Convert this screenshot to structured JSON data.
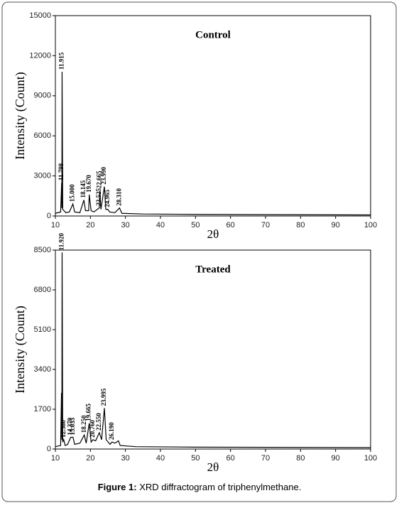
{
  "chart_data": [
    {
      "type": "line",
      "title": "Control",
      "x_label": "2θ",
      "y_label": "Intensity (Count)",
      "xlim": [
        10,
        100
      ],
      "xticks": [
        10,
        20,
        30,
        40,
        50,
        60,
        70,
        80,
        90,
        100
      ],
      "ylim": [
        0,
        15000
      ],
      "yticks": [
        0,
        3000,
        6000,
        9000,
        12000,
        15000
      ],
      "series": [
        {
          "name": "Control",
          "color": "#000000",
          "x": [
            10,
            11.5,
            11.798,
            11.85,
            11.915,
            12.1,
            13,
            14,
            15,
            15.5,
            17,
            18.145,
            18.6,
            19.5,
            19.67,
            20.2,
            21,
            22.525,
            22.665,
            23,
            23.99,
            24.4,
            24.965,
            25.5,
            27,
            28.31,
            29,
            35,
            50,
            70,
            100
          ],
          "values": [
            200,
            300,
            2500,
            600,
            10800,
            500,
            250,
            300,
            900,
            300,
            250,
            1200,
            400,
            400,
            1600,
            400,
            300,
            600,
            1900,
            500,
            2200,
            500,
            500,
            300,
            250,
            600,
            200,
            150,
            120,
            100,
            80
          ]
        }
      ],
      "peak_labels": [
        11.798,
        11.915,
        {
          "value": 15,
          "label": "15.000"
        },
        18.145,
        {
          "value": 19.67,
          "label": "19.670"
        },
        22.525,
        22.665,
        {
          "value": 23.99,
          "label": "23.990"
        },
        24.965,
        {
          "value": 28.31,
          "label": "28.310"
        }
      ]
    },
    {
      "type": "line",
      "title": "Treated",
      "x_label": "2θ",
      "y_label": "Intensity (Count)",
      "xlim": [
        10,
        100
      ],
      "xticks": [
        10,
        20,
        30,
        40,
        50,
        60,
        70,
        80,
        90,
        100
      ],
      "ylim": [
        0,
        8500
      ],
      "yticks": [
        0,
        1700,
        3400,
        5100,
        6800,
        8500
      ],
      "series": [
        {
          "name": "Treated",
          "color": "#000000",
          "x": [
            10,
            11.5,
            11.75,
            11.85,
            11.92,
            12.1,
            12.38,
            12.8,
            13.5,
            14.37,
            15.035,
            15.5,
            17,
            18.25,
            18.8,
            19.665,
            20.2,
            20.76,
            21.5,
            22.55,
            23.2,
            23.995,
            24.5,
            25.6,
            26.19,
            27,
            28,
            28.5,
            33,
            50,
            100
          ],
          "values": [
            100,
            150,
            2400,
            400,
            8400,
            300,
            400,
            150,
            200,
            500,
            500,
            200,
            250,
            600,
            250,
            1100,
            300,
            400,
            350,
            700,
            400,
            1750,
            400,
            200,
            300,
            250,
            350,
            150,
            100,
            80,
            60
          ]
        }
      ],
      "peak_labels": [
        {
          "value": 11.92,
          "label": "11.920"
        },
        {
          "value": 12.38,
          "label": "12.380"
        },
        {
          "value": 14.37,
          "label": "14.370"
        },
        15.035,
        {
          "value": 18.25,
          "label": "18.250"
        },
        19.665,
        {
          "value": 20.76,
          "label": "20.760"
        },
        {
          "value": 22.55,
          "label": "22.550"
        },
        23.995,
        {
          "value": 26.19,
          "label": "26.190"
        }
      ]
    }
  ],
  "caption": {
    "label": "Figure 1:",
    "text": "XRD diffractogram of triphenylmethane."
  }
}
